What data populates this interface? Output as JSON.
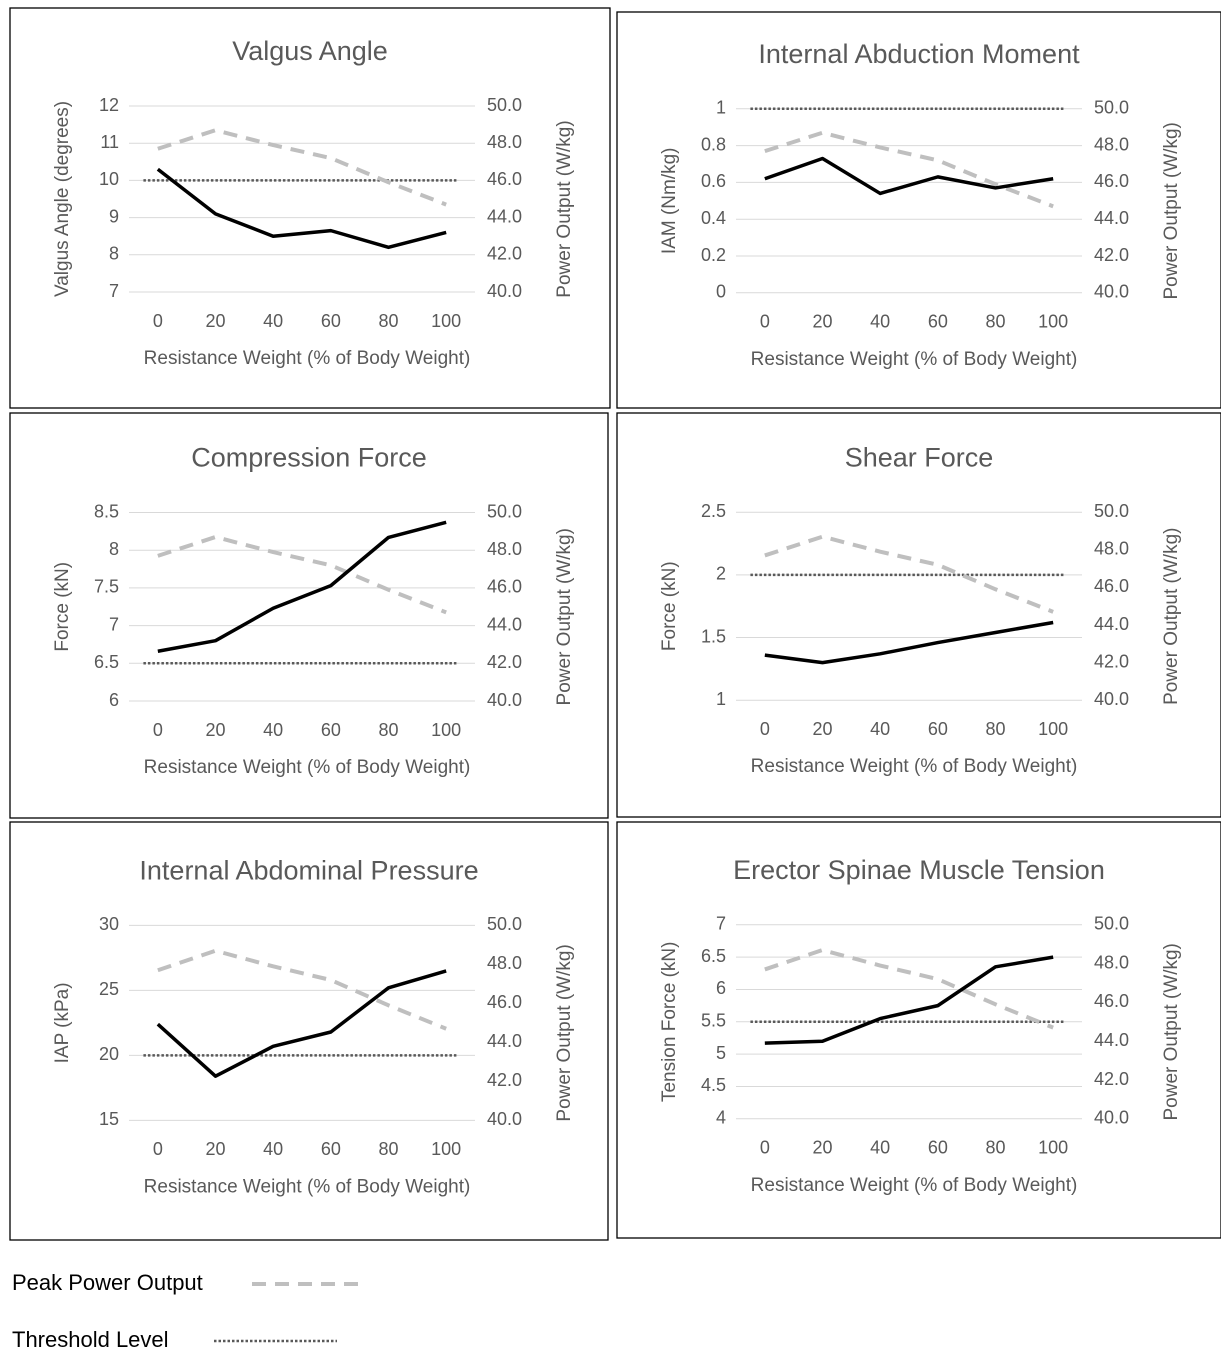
{
  "chart_data": [
    {
      "type": "line",
      "title": "Valgus Angle",
      "y_label": "Valgus Angle (degrees)",
      "y2_label": "Power Output (W/kg)",
      "x_label": "Resistance Weight (% of Body Weight)",
      "categories": [
        0,
        20,
        40,
        60,
        80,
        100
      ],
      "series": [
        {
          "color": "#000000",
          "values": [
            10.3,
            9.1,
            8.5,
            8.65,
            8.2,
            8.6
          ]
        },
        {
          "name": "Peak Power Output",
          "color": "#bfbfbf",
          "axis": "y2",
          "values": [
            47.7,
            48.7,
            47.9,
            47.2,
            45.9,
            44.7
          ]
        }
      ],
      "threshold": 10,
      "threshold_color": "#595959",
      "ylim": [
        7,
        12
      ],
      "yticks": [
        7,
        8,
        9,
        10,
        11,
        12
      ],
      "y2lim": [
        40,
        50
      ],
      "y2ticks": [
        {
          "value": 40,
          "label": "40.0"
        },
        {
          "value": 42,
          "label": "42.0"
        },
        {
          "value": 44,
          "label": "44.0"
        },
        {
          "value": 46,
          "label": "46.0"
        },
        {
          "value": 48,
          "label": "48.0"
        },
        {
          "value": 50,
          "label": "50.0"
        }
      ],
      "grid": true
    },
    {
      "type": "line",
      "title": "Internal Abduction Moment",
      "y_label": "IAM (Nm/kg)",
      "y2_label": "Power Output (W/kg)",
      "x_label": "Resistance Weight (% of Body Weight)",
      "categories": [
        0,
        20,
        40,
        60,
        80,
        100
      ],
      "series": [
        {
          "color": "#000000",
          "values": [
            0.62,
            0.73,
            0.54,
            0.63,
            0.57,
            0.62
          ]
        },
        {
          "name": "Peak Power Output",
          "color": "#bfbfbf",
          "axis": "y2",
          "values": [
            47.7,
            48.7,
            47.9,
            47.2,
            45.9,
            44.7
          ]
        }
      ],
      "threshold": 1,
      "threshold_color": "#595959",
      "ylim": [
        0,
        1
      ],
      "yticks": [
        0,
        0.2,
        0.4,
        0.6,
        0.8,
        1
      ],
      "y2lim": [
        40,
        50
      ],
      "y2ticks": [
        {
          "value": 40,
          "label": "40.0"
        },
        {
          "value": 42,
          "label": "42.0"
        },
        {
          "value": 44,
          "label": "44.0"
        },
        {
          "value": 46,
          "label": "46.0"
        },
        {
          "value": 48,
          "label": "48.0"
        },
        {
          "value": 50,
          "label": "50.0"
        }
      ],
      "grid": true
    },
    {
      "type": "line",
      "title": "Compression Force",
      "y_label": "Force (kN)",
      "y2_label": "Power Output (W/kg)",
      "x_label": "Resistance Weight (% of Body Weight)",
      "categories": [
        0,
        20,
        40,
        60,
        80,
        100
      ],
      "series": [
        {
          "color": "#000000",
          "values": [
            6.66,
            6.8,
            7.23,
            7.53,
            8.17,
            8.37
          ]
        },
        {
          "name": "Peak Power Output",
          "color": "#bfbfbf",
          "axis": "y2",
          "values": [
            47.7,
            48.7,
            47.9,
            47.2,
            45.9,
            44.7
          ]
        }
      ],
      "threshold": 6.5,
      "threshold_color": "#595959",
      "ylim": [
        6,
        8.5
      ],
      "yticks": [
        6,
        6.5,
        7,
        7.5,
        8,
        8.5
      ],
      "y2lim": [
        40,
        50
      ],
      "y2ticks": [
        {
          "value": 40,
          "label": "40.0"
        },
        {
          "value": 42,
          "label": "42.0"
        },
        {
          "value": 44,
          "label": "44.0"
        },
        {
          "value": 46,
          "label": "46.0"
        },
        {
          "value": 48,
          "label": "48.0"
        },
        {
          "value": 50,
          "label": "50.0"
        }
      ],
      "grid": true
    },
    {
      "type": "line",
      "title": "Shear Force",
      "y_label": "Force (kN)",
      "y2_label": "Power Output (W/kg)",
      "x_label": "Resistance Weight (% of Body Weight)",
      "categories": [
        0,
        20,
        40,
        60,
        80,
        100
      ],
      "series": [
        {
          "color": "#000000",
          "values": [
            1.36,
            1.3,
            1.37,
            1.46,
            1.54,
            1.62
          ]
        },
        {
          "name": "Peak Power Output",
          "color": "#bfbfbf",
          "axis": "y2",
          "values": [
            47.7,
            48.7,
            47.9,
            47.2,
            45.9,
            44.7
          ]
        }
      ],
      "threshold": 2,
      "threshold_color": "#595959",
      "ylim": [
        1,
        2.5
      ],
      "yticks": [
        1,
        1.5,
        2,
        2.5
      ],
      "y2lim": [
        40,
        50
      ],
      "y2ticks": [
        {
          "value": 40,
          "label": "40.0"
        },
        {
          "value": 42,
          "label": "42.0"
        },
        {
          "value": 44,
          "label": "44.0"
        },
        {
          "value": 46,
          "label": "46.0"
        },
        {
          "value": 48,
          "label": "48.0"
        },
        {
          "value": 50,
          "label": "50.0"
        }
      ],
      "grid": true
    },
    {
      "type": "line",
      "title": "Internal Abdominal Pressure",
      "y_label": "IAP (kPa)",
      "y2_label": "Power Output (W/kg)",
      "x_label": "Resistance Weight (% of Body Weight)",
      "categories": [
        0,
        20,
        40,
        60,
        80,
        100
      ],
      "series": [
        {
          "color": "#000000",
          "values": [
            22.4,
            18.4,
            20.7,
            21.8,
            25.2,
            26.5
          ]
        },
        {
          "name": "Peak Power Output",
          "color": "#bfbfbf",
          "axis": "y2",
          "values": [
            47.7,
            48.7,
            47.9,
            47.2,
            45.9,
            44.7
          ]
        }
      ],
      "threshold": 20,
      "threshold_color": "#595959",
      "ylim": [
        15,
        30
      ],
      "yticks": [
        15,
        20,
        25,
        30
      ],
      "y2lim": [
        40,
        50
      ],
      "y2ticks": [
        {
          "value": 40,
          "label": "40.0"
        },
        {
          "value": 42,
          "label": "42.0"
        },
        {
          "value": 44,
          "label": "44.0"
        },
        {
          "value": 46,
          "label": "46.0"
        },
        {
          "value": 48,
          "label": "48.0"
        },
        {
          "value": 50,
          "label": "50.0"
        }
      ],
      "grid": true
    },
    {
      "type": "line",
      "title": "Erector Spinae Muscle Tension",
      "y_label": "Tension Force (kN)",
      "y2_label": "Power Output (W/kg)",
      "x_label": "Resistance Weight (% of Body Weight)",
      "categories": [
        0,
        20,
        40,
        60,
        80,
        100
      ],
      "series": [
        {
          "color": "#000000",
          "values": [
            5.17,
            5.2,
            5.55,
            5.75,
            6.35,
            6.5
          ]
        },
        {
          "name": "Peak Power Output",
          "color": "#bfbfbf",
          "axis": "y2",
          "values": [
            47.7,
            48.7,
            47.9,
            47.2,
            45.9,
            44.7
          ]
        }
      ],
      "threshold": 5.5,
      "threshold_color": "#595959",
      "ylim": [
        4,
        7
      ],
      "yticks": [
        4,
        4.5,
        5,
        5.5,
        6,
        6.5,
        7
      ],
      "y2lim": [
        40,
        50
      ],
      "y2ticks": [
        {
          "value": 40,
          "label": "40.0"
        },
        {
          "value": 42,
          "label": "42.0"
        },
        {
          "value": 44,
          "label": "44.0"
        },
        {
          "value": 46,
          "label": "46.0"
        },
        {
          "value": 48,
          "label": "48.0"
        },
        {
          "value": 50,
          "label": "50.0"
        }
      ],
      "grid": true
    }
  ],
  "legend": {
    "power": "Peak Power Output",
    "threshold": "Threshold Level"
  }
}
